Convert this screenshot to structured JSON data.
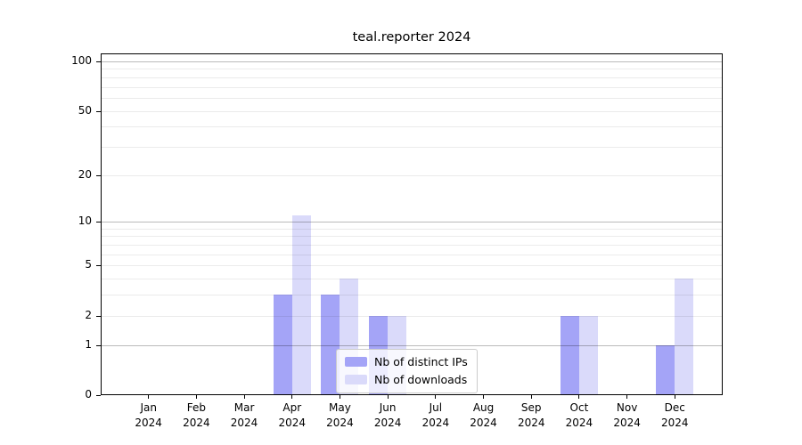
{
  "chart_data": {
    "type": "bar",
    "title": "teal.reporter 2024",
    "categories": [
      {
        "month": "Jan",
        "year": "2024"
      },
      {
        "month": "Feb",
        "year": "2024"
      },
      {
        "month": "Mar",
        "year": "2024"
      },
      {
        "month": "Apr",
        "year": "2024"
      },
      {
        "month": "May",
        "year": "2024"
      },
      {
        "month": "Jun",
        "year": "2024"
      },
      {
        "month": "Jul",
        "year": "2024"
      },
      {
        "month": "Aug",
        "year": "2024"
      },
      {
        "month": "Sep",
        "year": "2024"
      },
      {
        "month": "Oct",
        "year": "2024"
      },
      {
        "month": "Nov",
        "year": "2024"
      },
      {
        "month": "Dec",
        "year": "2024"
      }
    ],
    "series": [
      {
        "name": "Nb of distinct IPs",
        "color": "#a4a4f7",
        "values": [
          0,
          0,
          0,
          3,
          3,
          2,
          0,
          0,
          0,
          2,
          0,
          1
        ]
      },
      {
        "name": "Nb of downloads",
        "color": "#dadafa",
        "values": [
          0,
          0,
          0,
          11,
          4,
          2,
          0,
          0,
          0,
          2,
          0,
          4
        ]
      }
    ],
    "yscale": "log10(1+y)",
    "ylim": [
      0,
      100
    ],
    "yticks": [
      0,
      1,
      2,
      5,
      10,
      20,
      50,
      100
    ],
    "major_gridlines": [
      1,
      10,
      100
    ],
    "minor_gridlines": [
      2,
      3,
      4,
      5,
      6,
      7,
      8,
      9,
      20,
      30,
      40,
      50,
      60,
      70,
      80,
      90
    ],
    "grid": true,
    "legend_position": "lower center",
    "background_color": "#ffffff",
    "spine_color": "#000000"
  }
}
